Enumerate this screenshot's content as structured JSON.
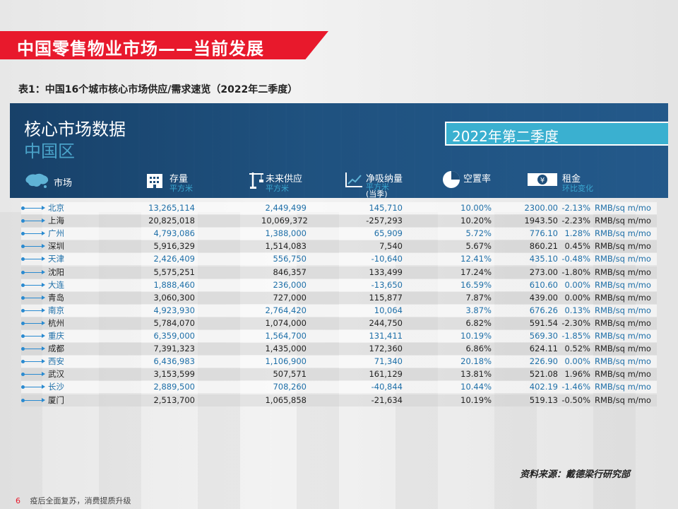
{
  "title": "中国零售物业市场——当前发展",
  "caption": "表1：中国16个城市核心市场供应/需求速览（2022年二季度）",
  "panel": {
    "title": "核心市场数据",
    "subtitle": "中国区",
    "quarter": "2022年第二季度"
  },
  "headers": {
    "market": "市场",
    "stock": "存量",
    "stock_unit": "平方米",
    "future": "未来供应",
    "future_unit": "平方米",
    "absorb": "净吸纳量",
    "absorb_unit": "平方米",
    "absorb_note": "(当季)",
    "vacancy": "空置率",
    "rent": "租金",
    "rent_note": "环比变化"
  },
  "rows": [
    {
      "city": "北京",
      "stock": "13,265,114",
      "future": "2,449,499",
      "absorb": "145,710",
      "vacancy": "10.00%",
      "rent": "2300.00",
      "change": "-2.13%",
      "unit": "RMB/sq m/mo",
      "blue": true
    },
    {
      "city": "上海",
      "stock": "20,825,018",
      "future": "10,069,372",
      "absorb": "-257,293",
      "vacancy": "10.20%",
      "rent": "1943.50",
      "change": "-2.23%",
      "unit": "RMB/sq m/mo",
      "blue": false
    },
    {
      "city": "广州",
      "stock": "4,793,086",
      "future": "1,388,000",
      "absorb": "65,909",
      "vacancy": "5.72%",
      "rent": "776.10",
      "change": "1.28%",
      "unit": "RMB/sq m/mo",
      "blue": true
    },
    {
      "city": "深圳",
      "stock": "5,916,329",
      "future": "1,514,083",
      "absorb": "7,540",
      "vacancy": "5.67%",
      "rent": "860.21",
      "change": "0.45%",
      "unit": "RMB/sq m/mo",
      "blue": false
    },
    {
      "city": "天津",
      "stock": "2,426,409",
      "future": "556,750",
      "absorb": "-10,640",
      "vacancy": "12.41%",
      "rent": "435.10",
      "change": "-0.48%",
      "unit": "RMB/sq m/mo",
      "blue": true
    },
    {
      "city": "沈阳",
      "stock": "5,575,251",
      "future": "846,357",
      "absorb": "133,499",
      "vacancy": "17.24%",
      "rent": "273.00",
      "change": "-1.80%",
      "unit": "RMB/sq m/mo",
      "blue": false
    },
    {
      "city": "大连",
      "stock": "1,888,460",
      "future": "236,000",
      "absorb": "-13,650",
      "vacancy": "16.59%",
      "rent": "610.60",
      "change": "0.00%",
      "unit": "RMB/sq m/mo",
      "blue": true
    },
    {
      "city": "青岛",
      "stock": "3,060,300",
      "future": "727,000",
      "absorb": "115,877",
      "vacancy": "7.87%",
      "rent": "439.00",
      "change": "0.00%",
      "unit": "RMB/sq m/mo",
      "blue": false
    },
    {
      "city": "南京",
      "stock": "4,923,930",
      "future": "2,764,420",
      "absorb": "10,064",
      "vacancy": "3.87%",
      "rent": "676.26",
      "change": "0.13%",
      "unit": "RMB/sq m/mo",
      "blue": true
    },
    {
      "city": "杭州",
      "stock": "5,784,070",
      "future": "1,074,000",
      "absorb": "244,750",
      "vacancy": "6.82%",
      "rent": "591.54",
      "change": "-2.30%",
      "unit": "RMB/sq m/mo",
      "blue": false
    },
    {
      "city": "重庆",
      "stock": "6,359,000",
      "future": "1,564,700",
      "absorb": "131,411",
      "vacancy": "10.19%",
      "rent": "569.30",
      "change": "-1.85%",
      "unit": "RMB/sq m/mo",
      "blue": true
    },
    {
      "city": "成都",
      "stock": "7,391,323",
      "future": "1,435,000",
      "absorb": "172,360",
      "vacancy": "6.86%",
      "rent": "624.11",
      "change": "0.52%",
      "unit": "RMB/sq m/mo",
      "blue": false
    },
    {
      "city": "西安",
      "stock": "6,436,983",
      "future": "1,106,900",
      "absorb": "71,340",
      "vacancy": "20.18%",
      "rent": "226.90",
      "change": "0.00%",
      "unit": "RMB/sq m/mo",
      "blue": true
    },
    {
      "city": "武汉",
      "stock": "3,153,599",
      "future": "507,571",
      "absorb": "161,129",
      "vacancy": "13.81%",
      "rent": "521.08",
      "change": "1.96%",
      "unit": "RMB/sq m/mo",
      "blue": false
    },
    {
      "city": "长沙",
      "stock": "2,889,500",
      "future": "708,260",
      "absorb": "-40,844",
      "vacancy": "10.44%",
      "rent": "402.19",
      "change": "-1.46%",
      "unit": "RMB/sq m/mo",
      "blue": true
    },
    {
      "city": "厦门",
      "stock": "2,513,700",
      "future": "1,065,858",
      "absorb": "-21,634",
      "vacancy": "10.19%",
      "rent": "519.13",
      "change": "-0.50%",
      "unit": "RMB/sq m/mo",
      "blue": false
    }
  ],
  "source": "资料来源：戴德梁行研究部",
  "footer": {
    "page": "6",
    "text": "疫后全面复苏，消费提质升级"
  }
}
